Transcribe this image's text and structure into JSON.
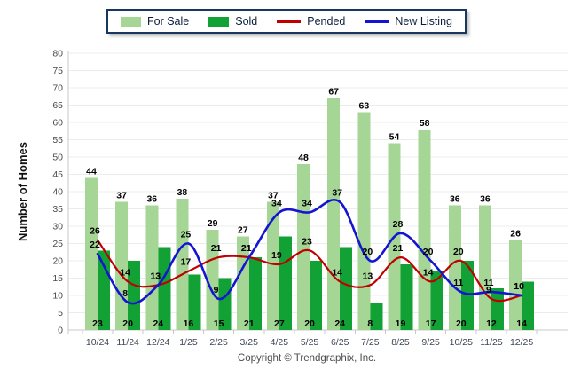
{
  "legend": {
    "items": [
      {
        "label": "For Sale",
        "type": "swatch",
        "color": "#A5D696"
      },
      {
        "label": "Sold",
        "type": "swatch",
        "color": "#12A135"
      },
      {
        "label": "Pended",
        "type": "line",
        "color": "#C00000"
      },
      {
        "label": "New Listing",
        "type": "line",
        "color": "#1414D2"
      }
    ]
  },
  "chart_data": {
    "type": "bar",
    "title": "",
    "categories": [
      "10/24",
      "11/24",
      "12/24",
      "1/25",
      "2/25",
      "3/25",
      "4/25",
      "5/25",
      "6/25",
      "7/25",
      "8/25",
      "9/25",
      "10/25",
      "11/25",
      "12/25"
    ],
    "series": [
      {
        "name": "For Sale",
        "type": "bar",
        "color": "#A5D696",
        "values": [
          44,
          37,
          36,
          38,
          29,
          27,
          37,
          48,
          67,
          63,
          54,
          58,
          36,
          36,
          26
        ]
      },
      {
        "name": "Sold",
        "type": "bar",
        "color": "#12A135",
        "values": [
          23,
          20,
          24,
          16,
          15,
          21,
          27,
          20,
          24,
          8,
          19,
          17,
          20,
          12,
          14
        ]
      },
      {
        "name": "Pended",
        "type": "line",
        "color": "#C00000",
        "values": [
          26,
          14,
          13,
          17,
          21,
          21,
          19,
          23,
          14,
          13,
          21,
          14,
          20,
          9,
          10
        ]
      },
      {
        "name": "New Listing",
        "type": "line",
        "color": "#1414D2",
        "values": [
          22,
          8,
          13,
          25,
          9,
          21,
          34,
          34,
          37,
          20,
          28,
          20,
          11,
          11,
          10
        ]
      }
    ],
    "xlabel": "",
    "ylabel": "Number of Homes",
    "ylim": [
      0,
      80
    ],
    "ytick_step": 5,
    "grid": true,
    "legend_position": "top"
  },
  "footer": {
    "copyright": "Copyright © Trendgraphix, Inc."
  }
}
